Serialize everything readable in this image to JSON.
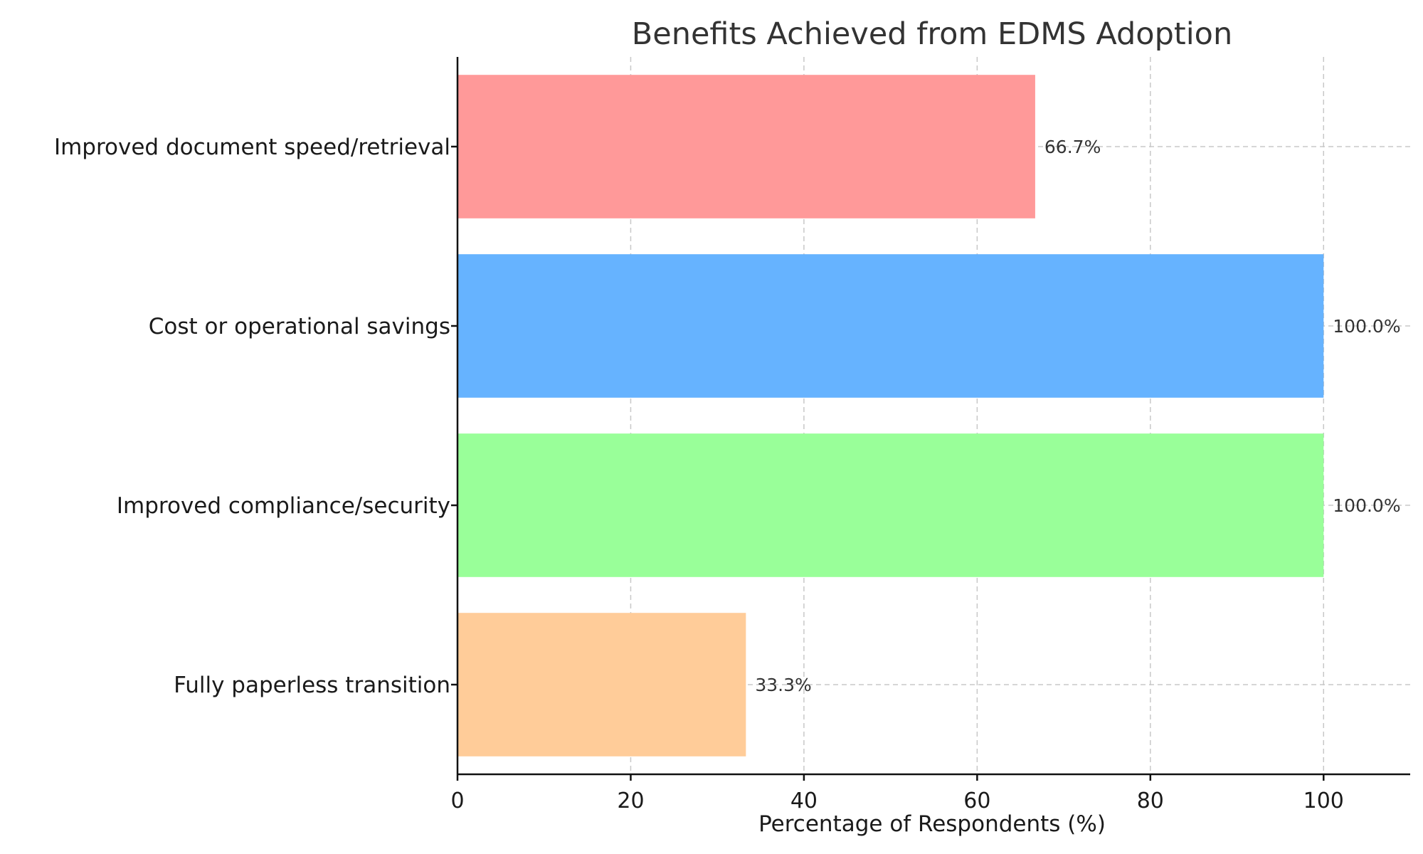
{
  "chart_data": {
    "type": "bar",
    "orientation": "horizontal",
    "title": "Benefits Achieved from EDMS Adoption",
    "xlabel": "Percentage of Respondents (%)",
    "ylabel": "",
    "xlim": [
      0,
      110
    ],
    "xticks": [
      0,
      20,
      40,
      60,
      80,
      100
    ],
    "xtick_labels": [
      "0",
      "20",
      "40",
      "60",
      "80",
      "100"
    ],
    "grid": true,
    "categories": [
      "Improved document speed/retrieval",
      "Cost or operational savings",
      "Improved compliance/security",
      "Fully paperless transition"
    ],
    "values": [
      66.7,
      100.0,
      100.0,
      33.3
    ],
    "data_labels": [
      "66.7%",
      "100.0%",
      "100.0%",
      "33.3%"
    ],
    "colors": [
      "#ff9999",
      "#66b3ff",
      "#99ff99",
      "#ffcc99"
    ]
  }
}
